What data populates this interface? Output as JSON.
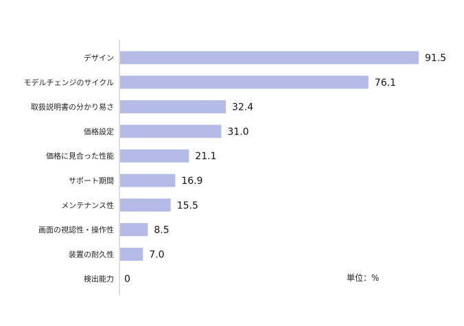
{
  "chart_data": {
    "type": "bar",
    "orientation": "horizontal",
    "categories": [
      "デザイン",
      "モデルチェンジのサイクル",
      "取扱説明書の分かり易さ",
      "価格設定",
      "価格に見合った性能",
      "サポート期間",
      "メンテナンス性",
      "画面の視認性・操作性",
      "装置の耐久性",
      "検出能力"
    ],
    "values": [
      91.5,
      76.1,
      32.4,
      31.0,
      21.1,
      16.9,
      15.5,
      8.5,
      7.0,
      0
    ],
    "value_labels": [
      "91.5",
      "76.1",
      "32.4",
      "31.0",
      "21.1",
      "16.9",
      "15.5",
      "8.5",
      "7.0",
      "0"
    ],
    "unit_label": "単位：%",
    "xlim": [
      0,
      100
    ],
    "bar_color": "#b4bce6",
    "grid": false,
    "legend": "none"
  }
}
